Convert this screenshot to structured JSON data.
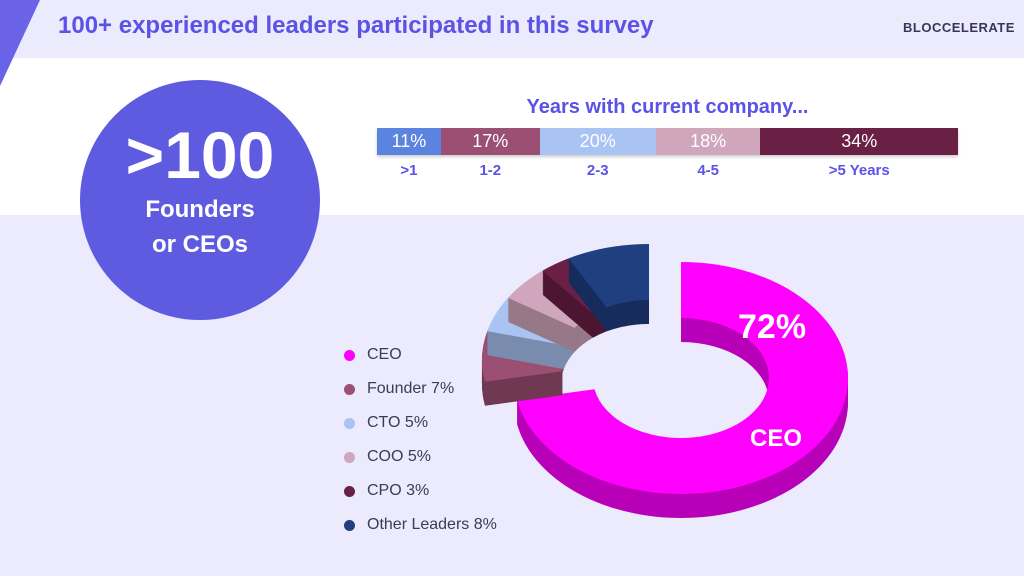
{
  "header": {
    "title": "100+ experienced leaders participated in this survey",
    "logo": "BLOCCELERATE"
  },
  "highlight": {
    "number": ">100",
    "line1": "Founders",
    "line2": "or CEOs"
  },
  "chart_data": [
    {
      "type": "bar",
      "stacked": true,
      "title": "Years with current company...",
      "categories": [
        ">1",
        "1-2",
        "2-3",
        "4-5",
        ">5 Years"
      ],
      "values": [
        11,
        17,
        20,
        18,
        34
      ],
      "labels": [
        "11%",
        "17%",
        "20%",
        "18%",
        "34%"
      ],
      "colors": [
        "#5b84e0",
        "#9b4f72",
        "#a9c3f2",
        "#d0a6bc",
        "#6a1f45"
      ]
    },
    {
      "type": "pie",
      "style": "3d-donut",
      "categories": [
        "CEO",
        "Founder",
        "CTO",
        "COO",
        "CPO",
        "Other Leaders"
      ],
      "values": [
        72,
        7,
        5,
        5,
        3,
        8
      ],
      "legend": [
        "CEO",
        "Founder 7%",
        "CTO 5%",
        "COO 5%",
        "CPO  3%",
        "Other Leaders 8%"
      ],
      "data_labels": {
        "value": "72%",
        "name": "CEO"
      },
      "colors": [
        "#ff00ff",
        "#9b4f72",
        "#a9c3f2",
        "#d0a6bc",
        "#6a1f45",
        "#1f3f80"
      ],
      "legend_placement": "left"
    }
  ]
}
